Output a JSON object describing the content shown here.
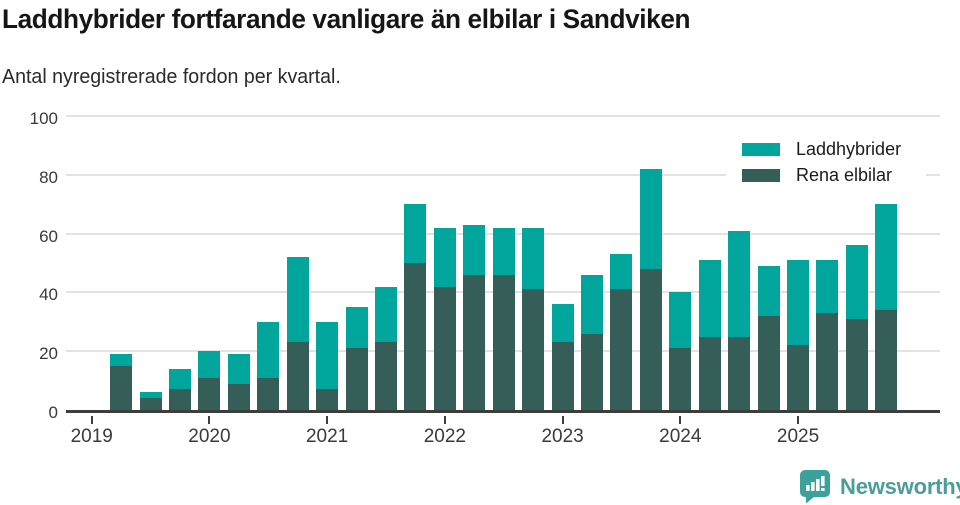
{
  "title": "Laddhybrider fortfarande vanligare än elbilar i Sandviken",
  "subtitle": "Antal nyregistrerade fordon per kvartal.",
  "legend": {
    "items": [
      {
        "label": "Laddhybrider",
        "color": "#00a59b"
      },
      {
        "label": "Rena elbilar",
        "color": "#355e58"
      }
    ]
  },
  "footer": {
    "brand": "Newsworthy",
    "logo_icon": "newsworthy-speech-bubble-barchart-icon"
  },
  "colors": {
    "laddhybrider_teal": "#00a59b",
    "rena_elbilar_dark_green": "#355e58",
    "gridline": "#e2e2e2",
    "axis": "#3d3d3d",
    "title_text": "#161616",
    "tick_text": "#3a3a3a",
    "brand_teal": "#4c9d98"
  },
  "chart_data": {
    "type": "bar",
    "stacked": true,
    "title": "Laddhybrider fortfarande vanligare än elbilar i Sandviken",
    "subtitle": "Antal nyregistrerade fordon per kvartal.",
    "xlabel": "",
    "ylabel": "",
    "ylim": [
      0,
      100
    ],
    "yticks": [
      0,
      20,
      40,
      60,
      80,
      100
    ],
    "grid": "horizontal",
    "legend_position": "top-right",
    "year_ticks": [
      "2019",
      "2020",
      "2021",
      "2022",
      "2023",
      "2024",
      "2025"
    ],
    "categories": [
      "2019 Q1",
      "2019 Q2",
      "2019 Q3",
      "2019 Q4",
      "2020 Q1",
      "2020 Q2",
      "2020 Q3",
      "2020 Q4",
      "2021 Q1",
      "2021 Q2",
      "2021 Q3",
      "2021 Q4",
      "2022 Q1",
      "2022 Q2",
      "2022 Q3",
      "2022 Q4",
      "2023 Q1",
      "2023 Q2",
      "2023 Q3",
      "2023 Q4",
      "2024 Q1",
      "2024 Q2",
      "2024 Q3",
      "2024 Q4",
      "2025 Q1",
      "2025 Q2",
      "2025 Q3",
      "2025 Q4"
    ],
    "series": [
      {
        "name": "Rena elbilar",
        "color": "#355e58",
        "values": [
          0,
          15,
          4,
          7,
          11,
          9,
          11,
          23,
          7,
          21,
          23,
          50,
          42,
          46,
          46,
          41,
          23,
          26,
          41,
          48,
          21,
          25,
          25,
          32,
          22,
          33,
          31,
          34
        ]
      },
      {
        "name": "Laddhybrider",
        "color": "#00a59b",
        "values": [
          0,
          4,
          2,
          7,
          9,
          10,
          19,
          29,
          23,
          14,
          19,
          20,
          20,
          17,
          16,
          21,
          13,
          20,
          12,
          34,
          19,
          26,
          36,
          17,
          29,
          18,
          25,
          36
        ]
      }
    ],
    "totals": [
      0,
      19,
      6,
      14,
      20,
      19,
      30,
      52,
      30,
      35,
      42,
      70,
      62,
      63,
      62,
      62,
      36,
      46,
      53,
      82,
      40,
      51,
      61,
      49,
      51,
      51,
      56,
      70
    ]
  }
}
